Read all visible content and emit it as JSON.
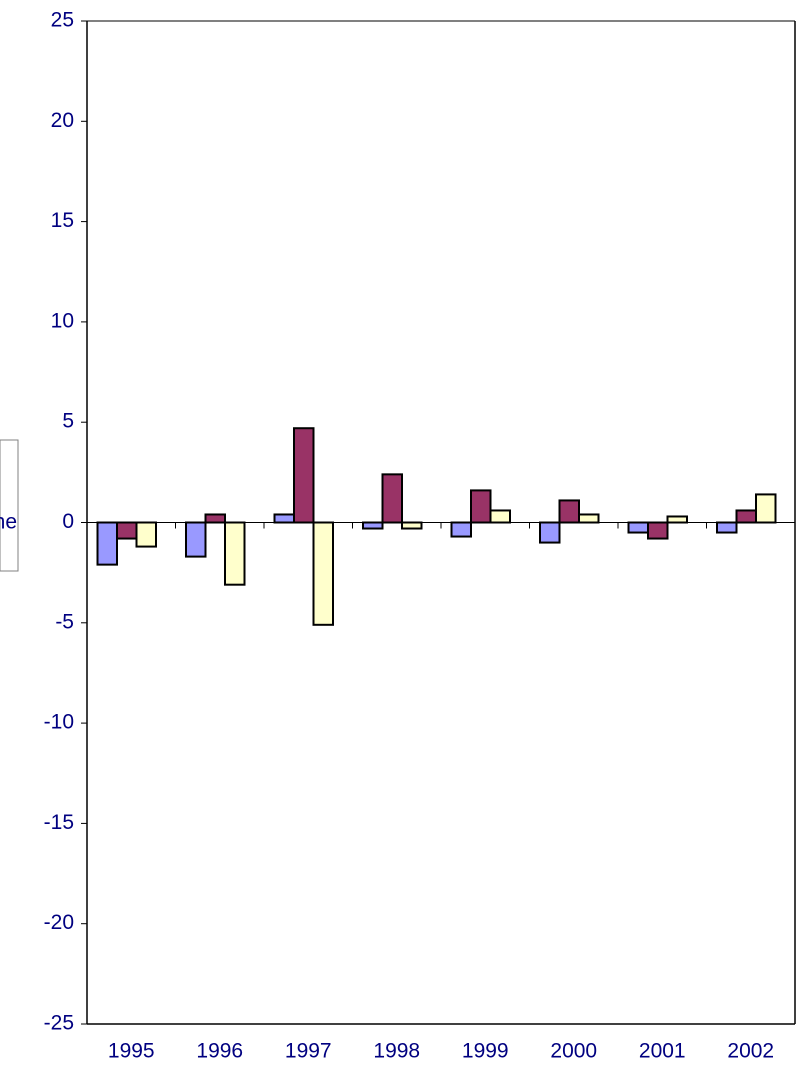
{
  "chart_data": {
    "type": "bar",
    "categories": [
      "1995",
      "1996",
      "1997",
      "1998",
      "1999",
      "2000",
      "2001",
      "2002"
    ],
    "series": [
      {
        "color": "#9999ff",
        "values": [
          -2.1,
          -1.7,
          0.4,
          -0.3,
          -0.7,
          -1.0,
          -0.5,
          -0.5
        ]
      },
      {
        "color": "#993366",
        "values": [
          -0.8,
          0.4,
          4.7,
          2.4,
          1.6,
          1.1,
          -0.8,
          0.6
        ]
      },
      {
        "color": "#ffffcc",
        "values": [
          -1.2,
          -3.1,
          -5.1,
          -0.3,
          0.6,
          0.4,
          0.3,
          1.4
        ]
      }
    ],
    "ylim": [
      -25,
      25
    ],
    "yticks": [
      -25,
      -20,
      -15,
      -10,
      -5,
      0,
      5,
      10,
      15,
      20,
      25
    ],
    "annotation": "ne"
  }
}
